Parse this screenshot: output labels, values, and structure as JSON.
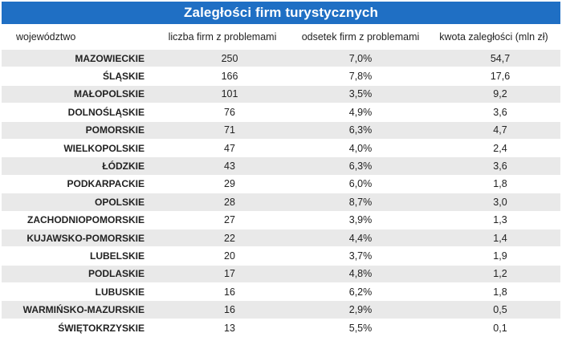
{
  "title": "Zaległości firm turystycznych",
  "headers": {
    "region": "województwo",
    "count": "liczba firm z problemami",
    "percent": "odsetek firm z problemami",
    "amount": "kwota zaległości (mln zł)"
  },
  "rows": [
    {
      "region": "MAZOWIECKIE",
      "count": "250",
      "percent": "7,0%",
      "amount": "54,7"
    },
    {
      "region": "ŚLĄSKIE",
      "count": "166",
      "percent": "7,8%",
      "amount": "17,6"
    },
    {
      "region": "MAŁOPOLSKIE",
      "count": "101",
      "percent": "3,5%",
      "amount": "9,2"
    },
    {
      "region": "DOLNOŚLĄSKIE",
      "count": "76",
      "percent": "4,9%",
      "amount": "3,6"
    },
    {
      "region": "POMORSKIE",
      "count": "71",
      "percent": "6,3%",
      "amount": "4,7"
    },
    {
      "region": "WIELKOPOLSKIE",
      "count": "47",
      "percent": "4,0%",
      "amount": "2,4"
    },
    {
      "region": "ŁÓDZKIE",
      "count": "43",
      "percent": "6,3%",
      "amount": "3,6"
    },
    {
      "region": "PODKARPACKIE",
      "count": "29",
      "percent": "6,0%",
      "amount": "1,8"
    },
    {
      "region": "OPOLSKIE",
      "count": "28",
      "percent": "8,7%",
      "amount": "3,0"
    },
    {
      "region": "ZACHODNIOPOMORSKIE",
      "count": "27",
      "percent": "3,9%",
      "amount": "1,3"
    },
    {
      "region": "KUJAWSKO-POMORSKIE",
      "count": "22",
      "percent": "4,4%",
      "amount": "1,4"
    },
    {
      "region": "LUBELSKIE",
      "count": "20",
      "percent": "3,7%",
      "amount": "1,9"
    },
    {
      "region": "PODLASKIE",
      "count": "17",
      "percent": "4,8%",
      "amount": "1,2"
    },
    {
      "region": "LUBUSKIE",
      "count": "16",
      "percent": "6,2%",
      "amount": "1,8"
    },
    {
      "region": "WARMIŃSKO-MAZURSKIE",
      "count": "16",
      "percent": "2,9%",
      "amount": "0,5"
    },
    {
      "region": "ŚWIĘTOKRZYSKIE",
      "count": "13",
      "percent": "5,5%",
      "amount": "0,1"
    }
  ],
  "colors": {
    "title_background": "#1f6fc4",
    "title_text": "#ffffff",
    "stripe": "#e9e9e9"
  }
}
